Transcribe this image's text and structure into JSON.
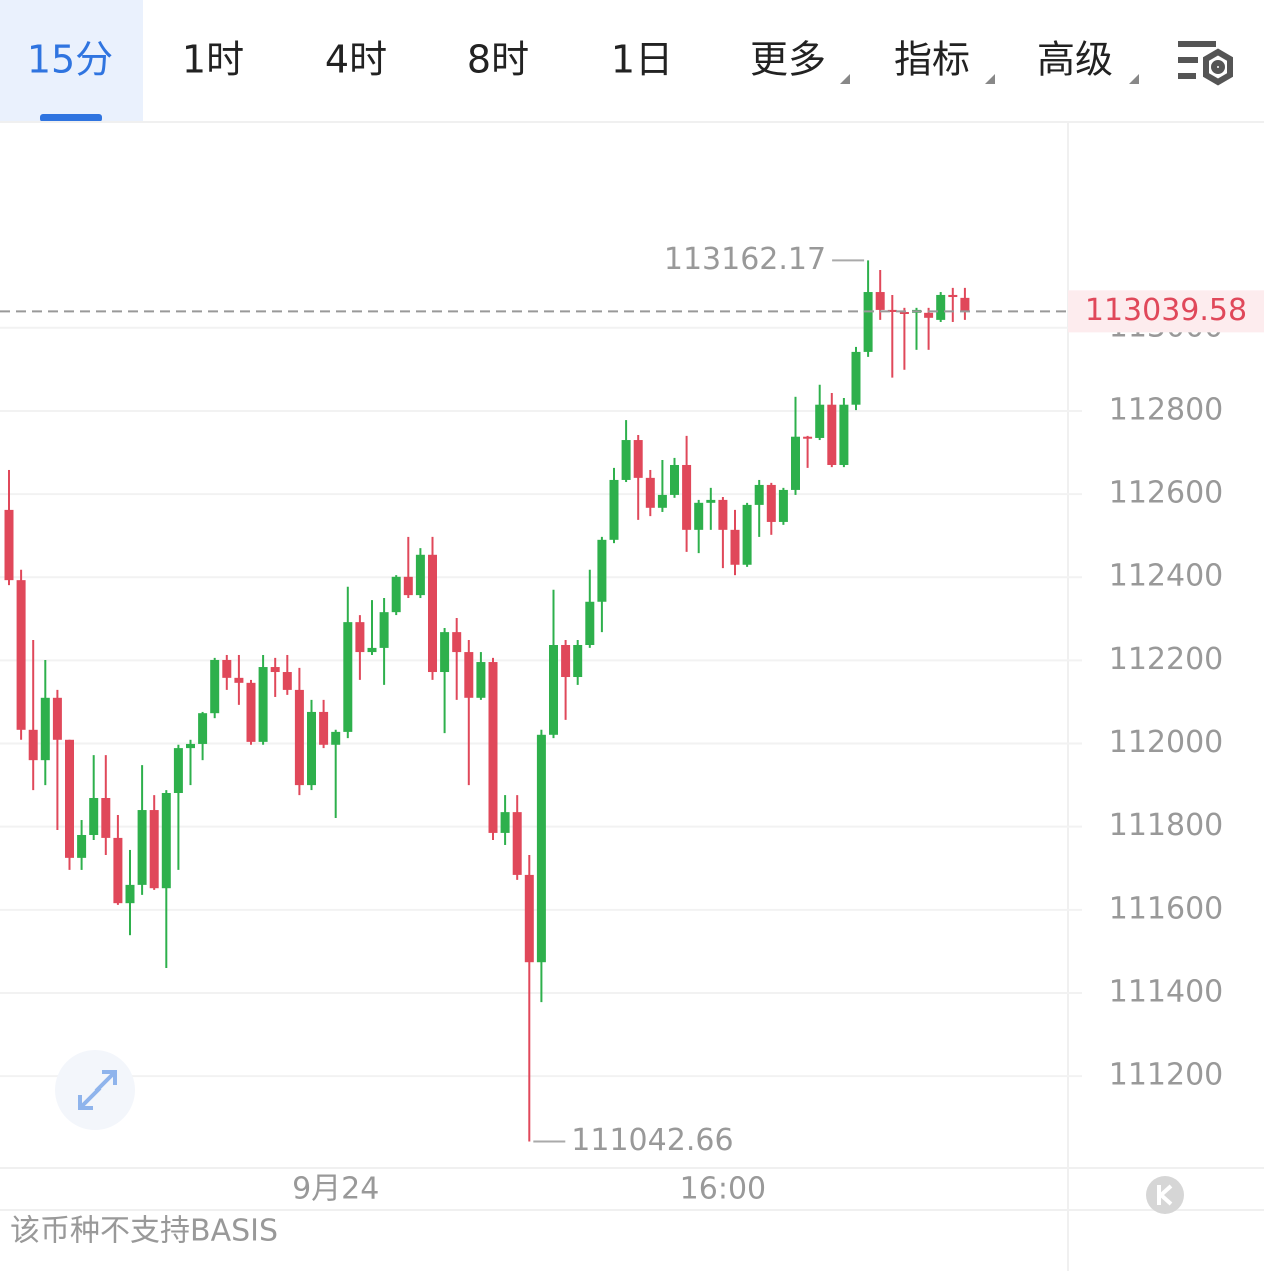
{
  "toolbar": {
    "tabs": [
      "15分",
      "1时",
      "4时",
      "8时",
      "1日",
      "更多",
      "指标",
      "高级"
    ]
  },
  "chart_data": {
    "type": "candlestick",
    "categories": [
      null,
      null,
      null,
      null,
      null,
      null,
      null,
      null,
      null,
      null,
      null,
      null,
      null,
      null,
      null,
      null,
      null,
      null,
      null,
      null,
      null,
      null,
      null,
      null,
      null,
      null,
      null,
      "9月24",
      null,
      null,
      null,
      null,
      null,
      null,
      null,
      null,
      null,
      null,
      null,
      null,
      null,
      null,
      null,
      null,
      null,
      null,
      null,
      null,
      null,
      null,
      null,
      null,
      null,
      null,
      null,
      null,
      null,
      null,
      null,
      "16:00",
      null,
      null,
      null,
      null,
      null,
      null,
      null,
      null,
      null,
      null,
      null,
      null,
      null,
      null,
      null,
      null,
      null,
      null,
      null,
      null
    ],
    "open": [
      112562,
      112393,
      112033,
      111960,
      112110,
      112009,
      111725,
      111780,
      111869,
      111773,
      111616,
      111660,
      111840,
      111652,
      111881,
      111989,
      111999,
      112073,
      112201,
      112158,
      112146,
      112004,
      112184,
      112172,
      112129,
      111900,
      112076,
      111997,
      112028,
      112292,
      112220,
      112230,
      112316,
      112401,
      112357,
      112454,
      112172,
      112268,
      112220,
      112110,
      112196,
      111785,
      111835,
      111684,
      111474,
      112021,
      112237,
      112160,
      112237,
      112341,
      112490,
      112634,
      112730,
      112639,
      112567,
      112598,
      112670,
      112514,
      112579,
      112586,
      112514,
      112430,
      112574,
      112622,
      112533,
      112610,
      112738,
      112735,
      112815,
      112670,
      112815,
      112942,
      113086,
      113043,
      113038,
      113036,
      113036,
      113019,
      113079,
      113072
    ],
    "high": [
      112658,
      112418,
      112249,
      112201,
      112129,
      112009,
      111816,
      111972,
      111972,
      111828,
      111744,
      111948,
      111876,
      111888,
      111997,
      112009,
      112076,
      112206,
      112213,
      112213,
      112153,
      112213,
      112206,
      112213,
      112182,
      112105,
      112105,
      112033,
      112377,
      112309,
      112345,
      112350,
      112405,
      112497,
      112470,
      112497,
      112278,
      112302,
      112249,
      112220,
      112206,
      111876,
      111876,
      111732,
      112033,
      112370,
      112249,
      112249,
      112418,
      112497,
      112663,
      112778,
      112742,
      112658,
      112682,
      112687,
      112740,
      112586,
      112615,
      112593,
      112562,
      112579,
      112634,
      112627,
      112615,
      112834,
      112740,
      112863,
      112843,
      112831,
      112954,
      113162.17,
      113139,
      113079,
      113048,
      113048,
      113048,
      113086,
      113096,
      113096
    ],
    "low": [
      112381,
      112009,
      111888,
      111900,
      111792,
      111696,
      111696,
      111768,
      111732,
      111612,
      111539,
      111636,
      111648,
      111460,
      111696,
      111900,
      111960,
      112061,
      112129,
      112093,
      111997,
      111997,
      112112,
      112117,
      111876,
      111888,
      111989,
      111821,
      112013,
      112153,
      112213,
      112141,
      112309,
      112350,
      112350,
      112153,
      112025,
      112105,
      111900,
      112105,
      111768,
      111756,
      111672,
      111042.66,
      111378,
      112013,
      112057,
      112141,
      112230,
      112268,
      112482,
      112629,
      112538,
      112547,
      112557,
      112591,
      112461,
      112458,
      112514,
      112422,
      112405,
      112425,
      112497,
      112502,
      112526,
      112598,
      112663,
      112730,
      112665,
      112665,
      112802,
      112930,
      113019,
      112880,
      112899,
      112947,
      112947,
      113014,
      113014,
      113019
    ],
    "close": [
      112393,
      112033,
      111960,
      112110,
      112009,
      111725,
      111780,
      111869,
      111773,
      111616,
      111660,
      111840,
      111652,
      111881,
      111989,
      111999,
      112073,
      112201,
      112158,
      112146,
      112004,
      112184,
      112172,
      112129,
      111900,
      112076,
      111997,
      112028,
      112292,
      112220,
      112230,
      112316,
      112401,
      112357,
      112454,
      112172,
      112268,
      112220,
      112110,
      112196,
      111785,
      111835,
      111684,
      111474,
      112021,
      112237,
      112160,
      112237,
      112341,
      112490,
      112634,
      112730,
      112639,
      112567,
      112598,
      112670,
      112514,
      112579,
      112586,
      112514,
      112430,
      112574,
      112622,
      112533,
      112610,
      112738,
      112735,
      112815,
      112670,
      112815,
      112942,
      113086,
      113043,
      113038,
      113036,
      113043,
      113024,
      113079,
      113074,
      113039.58
    ],
    "up_color": "#2eb04c",
    "down_color": "#e0485a",
    "ylim": [
      110979,
      113495
    ],
    "yticks": [
      111200,
      111400,
      111600,
      111800,
      112000,
      112200,
      112400,
      112600,
      112800,
      113000
    ],
    "grid": true
  },
  "footer": "该币种不支持BASIS"
}
